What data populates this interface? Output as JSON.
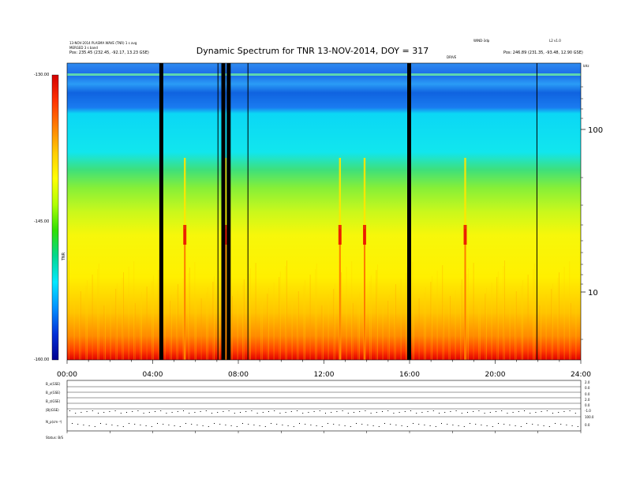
{
  "header": {
    "title": "Dynamic Spectrum for TNR 13-NOV-2014, DOY = 317",
    "left_line1": "13-NOV-2014 PLASMA WAVE (TNR) 1 s avg",
    "left_line2": "MERGED 3 s band",
    "left_pos": "Pos:   235.45 (232.45, -92.17, 13.23 GSE)",
    "right_line1": "WIND-3dp",
    "right_line2": "L2 v1.0",
    "right_line3": "Pos:   246.89 (231.35, -93.48, 12.90 GSE)",
    "small_marker": "DRIVE",
    "corner_label": "kHz"
  },
  "colorbar": {
    "colors": [
      "#d40000",
      "#ff3300",
      "#ff8000",
      "#ffcc00",
      "#ffff00",
      "#b0ff00",
      "#30e000",
      "#00d890",
      "#00e8ff",
      "#0090ff",
      "#0030d8",
      "#000090"
    ],
    "tick_labels": [
      "-130.00",
      "-145.00",
      "-160.00"
    ],
    "axis_label": "TNR"
  },
  "bottom_panel": {
    "row_labels": [
      "B_x(GSE)",
      "B_y(GSE)",
      "B_z(GSE)",
      "|B|(GSE)",
      "N_p(cm⁻³)"
    ],
    "right_ticks": [
      "2.0",
      "0.0",
      "0.0",
      "2.0",
      "0.0",
      "-1.0",
      "100.0",
      "0.0"
    ],
    "footer_left": "Status: B/S"
  },
  "chart_data": {
    "type": "heatmap",
    "title": "Dynamic Spectrum for TNR 13-NOV-2014, DOY = 317",
    "x_tick_labels": [
      "00:00",
      "04:00",
      "08:00",
      "12:00",
      "16:00",
      "20:00",
      "24:00"
    ],
    "x_range_hours": [
      0,
      24
    ],
    "y_tick_labels": [
      "100",
      "10"
    ],
    "y_scale": "log",
    "y_unit": "kHz",
    "colorbar_range": [
      -160,
      -130
    ],
    "data_gaps_hours": [
      4.4,
      7.3,
      7.55,
      15.98
    ],
    "thin_gaps_hours": [
      7.05,
      8.45,
      21.95
    ],
    "radio_bursts": [
      {
        "time_hours": 5.5,
        "type": "type III burst"
      },
      {
        "time_hours": 7.4,
        "type": "type III burst"
      },
      {
        "time_hours": 12.75,
        "type": "type III burst"
      },
      {
        "time_hours": 13.9,
        "type": "type III burst"
      },
      {
        "time_hours": 18.6,
        "type": "type III burst"
      }
    ]
  }
}
